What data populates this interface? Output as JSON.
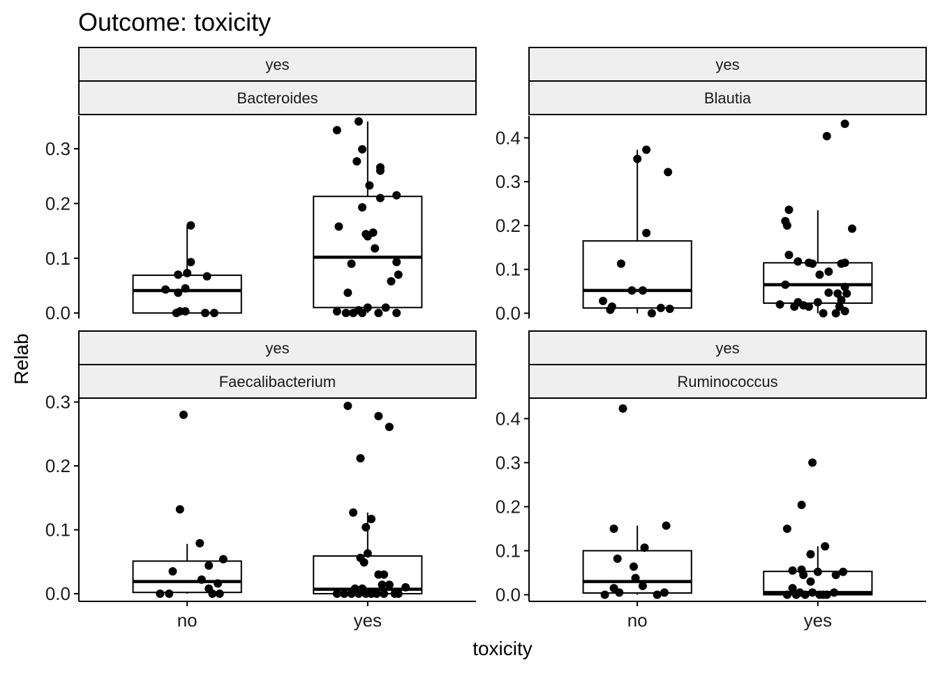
{
  "chart_data": {
    "type": "boxplot",
    "title": "Outcome: toxicity",
    "xlabel": "toxicity",
    "ylabel": "Relab",
    "categories": [
      "no",
      "yes"
    ],
    "point_color": "#000000",
    "strip_fill": "#efefef",
    "panels": [
      {
        "strip_top": "yes",
        "strip_bottom": "Bacteroides",
        "ylim": [
          -0.01,
          0.36
        ],
        "yticks": [
          0.0,
          0.1,
          0.2,
          0.3
        ],
        "tick_labels": [
          "0.0",
          "0.1",
          "0.2",
          "0.3"
        ],
        "boxes": [
          {
            "category": "no",
            "q1": 0.0,
            "median": 0.041,
            "q3": 0.069,
            "whisker_low": 0.0,
            "whisker_high": 0.16
          },
          {
            "category": "yes",
            "q1": 0.01,
            "median": 0.102,
            "q3": 0.213,
            "whisker_low": 0.0,
            "whisker_high": 0.35
          }
        ],
        "points": [
          {
            "category": "no",
            "x": 0.88,
            "y": 0.043
          },
          {
            "category": "no",
            "x": 0.95,
            "y": 0.07
          },
          {
            "category": "no",
            "x": 1.02,
            "y": 0.093
          },
          {
            "category": "no",
            "x": 1.02,
            "y": 0.16
          },
          {
            "category": "no",
            "x": 1.0,
            "y": 0.073
          },
          {
            "category": "no",
            "x": 1.11,
            "y": 0.067
          },
          {
            "category": "no",
            "x": 0.99,
            "y": 0.045
          },
          {
            "category": "no",
            "x": 0.95,
            "y": 0.037
          },
          {
            "category": "no",
            "x": 0.96,
            "y": 0.003
          },
          {
            "category": "no",
            "x": 0.99,
            "y": 0.003
          },
          {
            "category": "no",
            "x": 0.94,
            "y": 0.0
          },
          {
            "category": "no",
            "x": 1.1,
            "y": 0.0
          },
          {
            "category": "no",
            "x": 1.15,
            "y": 0.0
          },
          {
            "category": "yes",
            "x": 1.83,
            "y": 0.334
          },
          {
            "category": "yes",
            "x": 1.95,
            "y": 0.35
          },
          {
            "category": "yes",
            "x": 1.97,
            "y": 0.299
          },
          {
            "category": "yes",
            "x": 1.94,
            "y": 0.277
          },
          {
            "category": "yes",
            "x": 2.07,
            "y": 0.26
          },
          {
            "category": "yes",
            "x": 2.07,
            "y": 0.266
          },
          {
            "category": "yes",
            "x": 2.01,
            "y": 0.233
          },
          {
            "category": "yes",
            "x": 2.07,
            "y": 0.21
          },
          {
            "category": "yes",
            "x": 2.16,
            "y": 0.215
          },
          {
            "category": "yes",
            "x": 1.97,
            "y": 0.193
          },
          {
            "category": "yes",
            "x": 1.84,
            "y": 0.158
          },
          {
            "category": "yes",
            "x": 2.03,
            "y": 0.147
          },
          {
            "category": "yes",
            "x": 1.99,
            "y": 0.144
          },
          {
            "category": "yes",
            "x": 2.0,
            "y": 0.14
          },
          {
            "category": "yes",
            "x": 2.04,
            "y": 0.118
          },
          {
            "category": "yes",
            "x": 1.91,
            "y": 0.09
          },
          {
            "category": "yes",
            "x": 2.16,
            "y": 0.093
          },
          {
            "category": "yes",
            "x": 2.17,
            "y": 0.07
          },
          {
            "category": "yes",
            "x": 2.13,
            "y": 0.058
          },
          {
            "category": "yes",
            "x": 1.89,
            "y": 0.037
          },
          {
            "category": "yes",
            "x": 1.83,
            "y": 0.003
          },
          {
            "category": "yes",
            "x": 1.88,
            "y": 0.0
          },
          {
            "category": "yes",
            "x": 1.92,
            "y": 0.0
          },
          {
            "category": "yes",
            "x": 1.97,
            "y": 0.0
          },
          {
            "category": "yes",
            "x": 2.0,
            "y": 0.01
          },
          {
            "category": "yes",
            "x": 2.06,
            "y": 0.0
          },
          {
            "category": "yes",
            "x": 2.1,
            "y": 0.01
          },
          {
            "category": "yes",
            "x": 2.16,
            "y": 0.0
          },
          {
            "category": "yes",
            "x": 1.95,
            "y": 0.005
          }
        ]
      },
      {
        "strip_top": "yes",
        "strip_bottom": "Blautia",
        "ylim": [
          -0.012,
          0.45
        ],
        "yticks": [
          0.0,
          0.1,
          0.2,
          0.3,
          0.4
        ],
        "tick_labels": [
          "0.0",
          "0.1",
          "0.2",
          "0.3",
          "0.4"
        ],
        "boxes": [
          {
            "category": "no",
            "q1": 0.012,
            "median": 0.052,
            "q3": 0.165,
            "whisker_low": 0.0,
            "whisker_high": 0.373
          },
          {
            "category": "yes",
            "q1": 0.023,
            "median": 0.065,
            "q3": 0.115,
            "whisker_low": 0.0,
            "whisker_high": 0.235
          }
        ],
        "points": [
          {
            "category": "no",
            "x": 1.05,
            "y": 0.373
          },
          {
            "category": "no",
            "x": 1.0,
            "y": 0.352
          },
          {
            "category": "no",
            "x": 1.17,
            "y": 0.322
          },
          {
            "category": "no",
            "x": 1.05,
            "y": 0.183
          },
          {
            "category": "no",
            "x": 0.91,
            "y": 0.113
          },
          {
            "category": "no",
            "x": 0.97,
            "y": 0.052
          },
          {
            "category": "no",
            "x": 1.03,
            "y": 0.052
          },
          {
            "category": "no",
            "x": 0.81,
            "y": 0.028
          },
          {
            "category": "no",
            "x": 0.86,
            "y": 0.015
          },
          {
            "category": "no",
            "x": 0.85,
            "y": 0.008
          },
          {
            "category": "no",
            "x": 1.13,
            "y": 0.012
          },
          {
            "category": "no",
            "x": 1.18,
            "y": 0.01
          },
          {
            "category": "no",
            "x": 1.08,
            "y": 0.0
          },
          {
            "category": "yes",
            "x": 2.15,
            "y": 0.432
          },
          {
            "category": "yes",
            "x": 2.05,
            "y": 0.404
          },
          {
            "category": "yes",
            "x": 1.84,
            "y": 0.236
          },
          {
            "category": "yes",
            "x": 1.82,
            "y": 0.21
          },
          {
            "category": "yes",
            "x": 1.83,
            "y": 0.2
          },
          {
            "category": "yes",
            "x": 2.19,
            "y": 0.193
          },
          {
            "category": "yes",
            "x": 1.84,
            "y": 0.133
          },
          {
            "category": "yes",
            "x": 1.89,
            "y": 0.118
          },
          {
            "category": "yes",
            "x": 1.95,
            "y": 0.115
          },
          {
            "category": "yes",
            "x": 1.97,
            "y": 0.113
          },
          {
            "category": "yes",
            "x": 2.13,
            "y": 0.113
          },
          {
            "category": "yes",
            "x": 2.15,
            "y": 0.115
          },
          {
            "category": "yes",
            "x": 2.01,
            "y": 0.088
          },
          {
            "category": "yes",
            "x": 2.06,
            "y": 0.095
          },
          {
            "category": "yes",
            "x": 1.82,
            "y": 0.065
          },
          {
            "category": "yes",
            "x": 2.15,
            "y": 0.06
          },
          {
            "category": "yes",
            "x": 2.06,
            "y": 0.047
          },
          {
            "category": "yes",
            "x": 2.11,
            "y": 0.045
          },
          {
            "category": "yes",
            "x": 2.16,
            "y": 0.045
          },
          {
            "category": "yes",
            "x": 2.13,
            "y": 0.03
          },
          {
            "category": "yes",
            "x": 1.89,
            "y": 0.025
          },
          {
            "category": "yes",
            "x": 2.0,
            "y": 0.025
          },
          {
            "category": "yes",
            "x": 1.79,
            "y": 0.02
          },
          {
            "category": "yes",
            "x": 1.87,
            "y": 0.015
          },
          {
            "category": "yes",
            "x": 1.92,
            "y": 0.018
          },
          {
            "category": "yes",
            "x": 1.95,
            "y": 0.015
          },
          {
            "category": "yes",
            "x": 2.12,
            "y": 0.015
          },
          {
            "category": "yes",
            "x": 2.03,
            "y": 0.0
          },
          {
            "category": "yes",
            "x": 2.1,
            "y": 0.0
          },
          {
            "category": "yes",
            "x": 2.15,
            "y": 0.005
          }
        ]
      },
      {
        "strip_top": "yes",
        "strip_bottom": "Faecalibacterium",
        "ylim": [
          -0.012,
          0.305
        ],
        "yticks": [
          0.0,
          0.1,
          0.2,
          0.3
        ],
        "tick_labels": [
          "0.0",
          "0.1",
          "0.2",
          "0.3"
        ],
        "boxes": [
          {
            "category": "no",
            "q1": 0.002,
            "median": 0.019,
            "q3": 0.051,
            "whisker_low": 0.0,
            "whisker_high": 0.078
          },
          {
            "category": "yes",
            "q1": 0.0,
            "median": 0.007,
            "q3": 0.059,
            "whisker_low": 0.0,
            "whisker_high": 0.127
          }
        ],
        "points": [
          {
            "category": "no",
            "x": 0.98,
            "y": 0.28
          },
          {
            "category": "no",
            "x": 0.96,
            "y": 0.132
          },
          {
            "category": "no",
            "x": 1.07,
            "y": 0.079
          },
          {
            "category": "no",
            "x": 1.2,
            "y": 0.054
          },
          {
            "category": "no",
            "x": 1.12,
            "y": 0.044
          },
          {
            "category": "no",
            "x": 0.92,
            "y": 0.035
          },
          {
            "category": "no",
            "x": 1.08,
            "y": 0.022
          },
          {
            "category": "no",
            "x": 1.17,
            "y": 0.016
          },
          {
            "category": "no",
            "x": 1.12,
            "y": 0.008
          },
          {
            "category": "no",
            "x": 1.14,
            "y": 0.0
          },
          {
            "category": "no",
            "x": 1.18,
            "y": 0.0
          },
          {
            "category": "no",
            "x": 0.85,
            "y": 0.0
          },
          {
            "category": "no",
            "x": 0.9,
            "y": 0.0
          },
          {
            "category": "yes",
            "x": 1.89,
            "y": 0.294
          },
          {
            "category": "yes",
            "x": 2.06,
            "y": 0.278
          },
          {
            "category": "yes",
            "x": 2.12,
            "y": 0.261
          },
          {
            "category": "yes",
            "x": 1.96,
            "y": 0.212
          },
          {
            "category": "yes",
            "x": 1.92,
            "y": 0.127
          },
          {
            "category": "yes",
            "x": 2.02,
            "y": 0.117
          },
          {
            "category": "yes",
            "x": 1.99,
            "y": 0.104
          },
          {
            "category": "yes",
            "x": 2.0,
            "y": 0.063
          },
          {
            "category": "yes",
            "x": 1.96,
            "y": 0.056
          },
          {
            "category": "yes",
            "x": 1.98,
            "y": 0.049
          },
          {
            "category": "yes",
            "x": 2.06,
            "y": 0.03
          },
          {
            "category": "yes",
            "x": 2.09,
            "y": 0.03
          },
          {
            "category": "yes",
            "x": 2.08,
            "y": 0.014
          },
          {
            "category": "yes",
            "x": 2.12,
            "y": 0.014
          },
          {
            "category": "yes",
            "x": 2.21,
            "y": 0.01
          },
          {
            "category": "yes",
            "x": 1.93,
            "y": 0.008
          },
          {
            "category": "yes",
            "x": 1.97,
            "y": 0.008
          },
          {
            "category": "yes",
            "x": 1.83,
            "y": 0.0
          },
          {
            "category": "yes",
            "x": 1.87,
            "y": 0.0
          },
          {
            "category": "yes",
            "x": 1.91,
            "y": 0.0
          },
          {
            "category": "yes",
            "x": 1.95,
            "y": 0.0
          },
          {
            "category": "yes",
            "x": 1.99,
            "y": 0.0
          },
          {
            "category": "yes",
            "x": 2.02,
            "y": 0.0
          },
          {
            "category": "yes",
            "x": 2.05,
            "y": 0.0
          },
          {
            "category": "yes",
            "x": 2.09,
            "y": 0.0
          },
          {
            "category": "yes",
            "x": 2.15,
            "y": 0.0
          },
          {
            "category": "yes",
            "x": 2.17,
            "y": 0.0
          }
        ]
      },
      {
        "strip_top": "yes",
        "strip_bottom": "Ruminococcus",
        "ylim": [
          -0.015,
          0.445
        ],
        "yticks": [
          0.0,
          0.1,
          0.2,
          0.3,
          0.4
        ],
        "tick_labels": [
          "0.0",
          "0.1",
          "0.2",
          "0.3",
          "0.4"
        ],
        "boxes": [
          {
            "category": "no",
            "q1": 0.004,
            "median": 0.03,
            "q3": 0.1,
            "whisker_low": 0.0,
            "whisker_high": 0.157
          },
          {
            "category": "yes",
            "q1": 0.0,
            "median": 0.005,
            "q3": 0.053,
            "whisker_low": 0.0,
            "whisker_high": 0.11
          }
        ],
        "points": [
          {
            "category": "no",
            "x": 0.92,
            "y": 0.423
          },
          {
            "category": "no",
            "x": 0.87,
            "y": 0.15
          },
          {
            "category": "no",
            "x": 1.16,
            "y": 0.157
          },
          {
            "category": "no",
            "x": 1.04,
            "y": 0.107
          },
          {
            "category": "no",
            "x": 0.89,
            "y": 0.082
          },
          {
            "category": "no",
            "x": 0.98,
            "y": 0.064
          },
          {
            "category": "no",
            "x": 0.99,
            "y": 0.038
          },
          {
            "category": "no",
            "x": 1.03,
            "y": 0.02
          },
          {
            "category": "no",
            "x": 0.87,
            "y": 0.015
          },
          {
            "category": "no",
            "x": 0.82,
            "y": 0.0
          },
          {
            "category": "no",
            "x": 0.9,
            "y": 0.005
          },
          {
            "category": "no",
            "x": 1.15,
            "y": 0.005
          },
          {
            "category": "no",
            "x": 1.11,
            "y": 0.0
          },
          {
            "category": "yes",
            "x": 1.97,
            "y": 0.3
          },
          {
            "category": "yes",
            "x": 1.91,
            "y": 0.204
          },
          {
            "category": "yes",
            "x": 1.83,
            "y": 0.15
          },
          {
            "category": "yes",
            "x": 2.04,
            "y": 0.11
          },
          {
            "category": "yes",
            "x": 1.96,
            "y": 0.092
          },
          {
            "category": "yes",
            "x": 1.86,
            "y": 0.055
          },
          {
            "category": "yes",
            "x": 1.91,
            "y": 0.057
          },
          {
            "category": "yes",
            "x": 2.0,
            "y": 0.052
          },
          {
            "category": "yes",
            "x": 2.14,
            "y": 0.052
          },
          {
            "category": "yes",
            "x": 1.92,
            "y": 0.045
          },
          {
            "category": "yes",
            "x": 2.1,
            "y": 0.045
          },
          {
            "category": "yes",
            "x": 1.96,
            "y": 0.03
          },
          {
            "category": "yes",
            "x": 1.86,
            "y": 0.015
          },
          {
            "category": "yes",
            "x": 1.83,
            "y": 0.0
          },
          {
            "category": "yes",
            "x": 1.88,
            "y": 0.0
          },
          {
            "category": "yes",
            "x": 1.93,
            "y": 0.0
          },
          {
            "category": "yes",
            "x": 1.97,
            "y": 0.005
          },
          {
            "category": "yes",
            "x": 2.01,
            "y": 0.0
          },
          {
            "category": "yes",
            "x": 2.05,
            "y": 0.0
          },
          {
            "category": "yes",
            "x": 2.09,
            "y": 0.005
          },
          {
            "category": "yes",
            "x": 1.9,
            "y": 0.005
          },
          {
            "category": "yes",
            "x": 2.03,
            "y": 0.0
          }
        ]
      }
    ]
  }
}
